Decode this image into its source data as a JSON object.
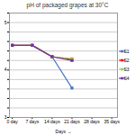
{
  "chart_data": {
    "type": "line",
    "title": "pH of packaged grapes at 30°C",
    "xlabel": "Days",
    "x": [
      0,
      7,
      14,
      21
    ],
    "series": [
      {
        "name": "S1",
        "color": "#4472C4",
        "values": [
          4.52,
          4.52,
          4.28,
          3.62
        ]
      },
      {
        "name": "S2",
        "color": "#FF0000",
        "values": [
          4.52,
          4.52,
          4.28,
          4.22
        ]
      },
      {
        "name": "S3",
        "color": "#92D050",
        "values": [
          4.52,
          4.52,
          4.28,
          4.24
        ]
      },
      {
        "name": "S4",
        "color": "#7030A0",
        "values": [
          4.52,
          4.52,
          4.28,
          4.2
        ]
      }
    ],
    "xlim": [
      -1,
      37
    ],
    "xticks": [
      {
        "value": 0,
        "label": "0 day"
      },
      {
        "value": 7,
        "label": "7 days"
      },
      {
        "value": 14,
        "label": "14 days"
      },
      {
        "value": 21,
        "label": "21 days"
      },
      {
        "value": 28,
        "label": "28 days"
      },
      {
        "value": 35,
        "label": "35 days"
      }
    ],
    "ylim": [
      3.0,
      5.2
    ],
    "yticks": [
      3,
      {
        "value": 3.2,
        "label": null
      },
      {
        "value": 3.4,
        "label": null
      },
      {
        "value": 3.6,
        "label": null
      },
      {
        "value": 3.8,
        "label": null
      },
      4,
      {
        "value": 4.2,
        "label": null
      },
      {
        "value": 4.4,
        "label": null
      },
      {
        "value": 4.6,
        "label": null
      },
      {
        "value": 4.8,
        "label": null
      },
      5,
      {
        "value": 5.2,
        "label": null
      }
    ],
    "grid": "y",
    "legend": "right",
    "marker": "square"
  }
}
